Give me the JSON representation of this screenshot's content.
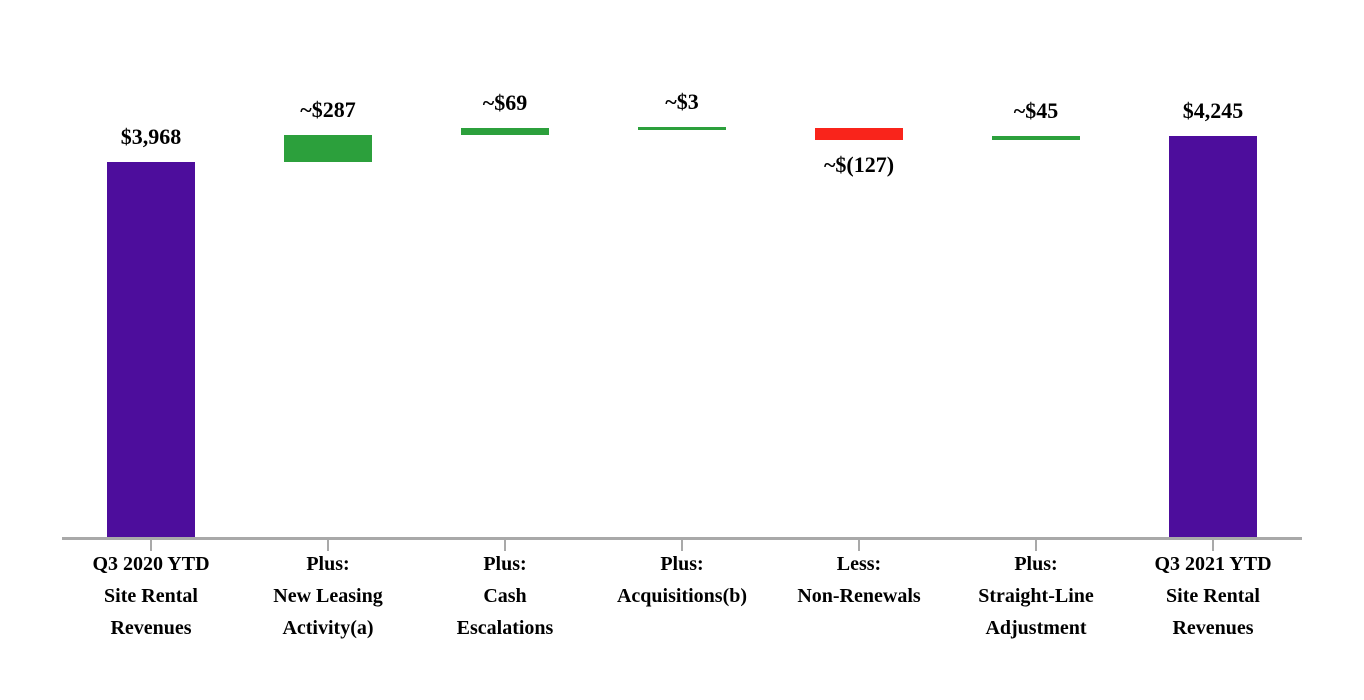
{
  "chart_data": {
    "type": "bar",
    "subtype": "waterfall",
    "title": "",
    "xlabel": "",
    "ylabel": "",
    "ylim": [
      0,
      4327
    ],
    "grid": "off",
    "legend": "none",
    "categories": [
      "Q3 2020 YTD Site Rental Revenues",
      "Plus: New Leasing Activity(a)",
      "Plus: Cash Escalations",
      "Plus: Acquisitions(b)",
      "Less: Non-Renewals",
      "Plus: Straight-Line Adjustment",
      "Q3 2021 YTD Site Rental Revenues"
    ],
    "steps": [
      {
        "category_lines": [
          "Q3 2020 YTD",
          "Site Rental",
          "Revenues"
        ],
        "kind": "total",
        "value": 3968,
        "value_label": "$3,968",
        "label_position": "above"
      },
      {
        "category_lines": [
          "Plus:",
          "New Leasing",
          "Activity(a)"
        ],
        "kind": "increase",
        "value": 287,
        "value_label": "~$287",
        "label_position": "above"
      },
      {
        "category_lines": [
          "Plus:",
          "Cash",
          "Escalations"
        ],
        "kind": "increase",
        "value": 69,
        "value_label": "~$69",
        "label_position": "above"
      },
      {
        "category_lines": [
          "Plus:",
          "Acquisitions(b)"
        ],
        "kind": "increase",
        "value": 3,
        "value_label": "~$3",
        "label_position": "above"
      },
      {
        "category_lines": [
          "Less:",
          "Non-Renewals"
        ],
        "kind": "decrease",
        "value": -127,
        "value_label": "~$(127)",
        "label_position": "below"
      },
      {
        "category_lines": [
          "Plus:",
          "Straight-Line",
          "Adjustment"
        ],
        "kind": "increase",
        "value": 45,
        "value_label": "~$45",
        "label_position": "above"
      },
      {
        "category_lines": [
          "Q3 2021 YTD",
          "Site Rental",
          "Revenues"
        ],
        "kind": "total",
        "value": 4245,
        "value_label": "$4,245",
        "label_position": "above"
      }
    ],
    "colors": {
      "total": "#4d0d9c",
      "increase": "#2ca03c",
      "decrease": "#f9241b",
      "axis": "#a9a9a9",
      "text": "#000000"
    }
  }
}
